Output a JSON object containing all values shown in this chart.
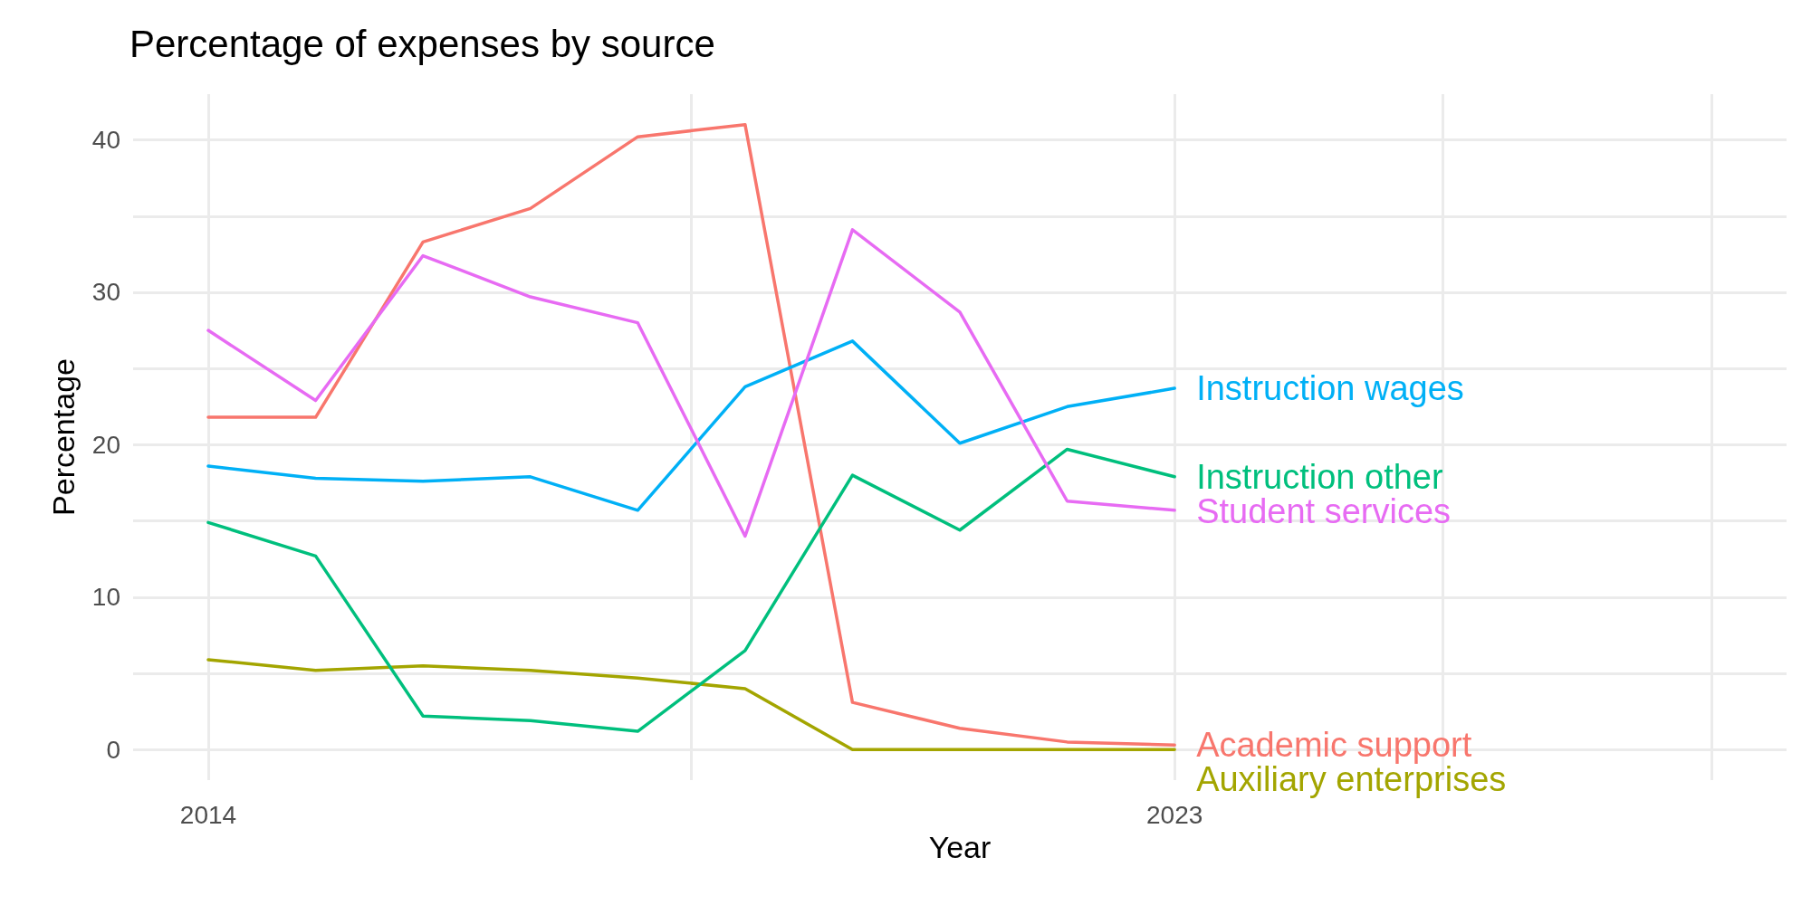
{
  "chart_data": {
    "type": "line",
    "title": "Percentage of expenses by source",
    "xlabel": "Year",
    "ylabel": "Percentage",
    "x": [
      2014,
      2015,
      2016,
      2017,
      2018,
      2019,
      2020,
      2021,
      2022,
      2023
    ],
    "xlim": [
      2013.3,
      2028.7
    ],
    "xticks": [
      2014,
      {
        "value": 2018.5,
        "label": null
      },
      2023,
      {
        "value": 2025.5,
        "label": null
      },
      {
        "value": 2028,
        "label": null
      }
    ],
    "ylim": [
      -2,
      43
    ],
    "yticks": [
      0,
      {
        "value": 5,
        "label": null
      },
      10,
      {
        "value": 15,
        "label": null
      },
      20,
      {
        "value": 25,
        "label": null
      },
      30,
      {
        "value": 35,
        "label": null
      },
      40
    ],
    "grid": true,
    "legend": false,
    "marker": "none",
    "line_style": "solid",
    "series": [
      {
        "name": "Academic support",
        "color": "#f8766d",
        "values": [
          21.8,
          21.8,
          33.3,
          35.5,
          40.2,
          41.0,
          3.1,
          1.4,
          0.5,
          0.3
        ]
      },
      {
        "name": "Auxiliary enterprises",
        "color": "#a3a500",
        "values": [
          5.9,
          5.2,
          5.5,
          5.2,
          4.7,
          4.0,
          0,
          0,
          0,
          0
        ]
      },
      {
        "name": "Instruction other",
        "color": "#00bf7d",
        "values": [
          14.9,
          12.7,
          2.2,
          1.9,
          1.2,
          6.5,
          18.0,
          14.4,
          19.7,
          17.9
        ]
      },
      {
        "name": "Instruction wages",
        "color": "#00b0f6",
        "values": [
          18.6,
          17.8,
          17.6,
          17.9,
          15.7,
          23.8,
          26.8,
          20.1,
          22.5,
          23.7
        ]
      },
      {
        "name": "Student services",
        "color": "#e76bf3",
        "values": [
          27.5,
          22.9,
          32.4,
          29.7,
          28.0,
          14.0,
          34.1,
          28.7,
          16.3,
          15.7
        ]
      }
    ]
  }
}
